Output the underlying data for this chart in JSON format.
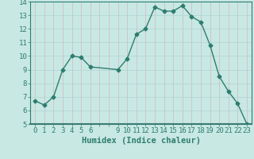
{
  "x": [
    0,
    1,
    2,
    3,
    4,
    5,
    6,
    9,
    10,
    11,
    12,
    13,
    14,
    15,
    16,
    17,
    18,
    19,
    20,
    21,
    22,
    23
  ],
  "y": [
    6.7,
    6.4,
    7.0,
    9.0,
    10.0,
    9.9,
    9.2,
    9.0,
    9.8,
    11.6,
    12.0,
    13.6,
    13.3,
    13.3,
    13.7,
    12.9,
    12.5,
    10.8,
    8.5,
    7.4,
    6.5,
    5.0
  ],
  "line_color": "#2e7d6e",
  "marker": "D",
  "marker_size": 2.5,
  "bg_color": "#c8e8e4",
  "grid_color_h": "#aed4cf",
  "grid_color_v": "#d4b8b8",
  "xlabel": "Humidex (Indice chaleur)",
  "xlim": [
    -0.5,
    23.5
  ],
  "ylim": [
    5,
    14
  ],
  "yticks": [
    5,
    6,
    7,
    8,
    9,
    10,
    11,
    12,
    13,
    14
  ],
  "xticks_all": [
    0,
    1,
    2,
    3,
    4,
    5,
    6,
    7,
    8,
    9,
    10,
    11,
    12,
    13,
    14,
    15,
    16,
    17,
    18,
    19,
    20,
    21,
    22,
    23
  ],
  "xticks_labeled": [
    0,
    1,
    2,
    3,
    4,
    5,
    6,
    9,
    10,
    11,
    12,
    13,
    14,
    15,
    16,
    17,
    18,
    19,
    20,
    21,
    22,
    23
  ],
  "tick_label_fontsize": 6.5,
  "xlabel_fontsize": 7.5,
  "xlabel_fontweight": "bold",
  "axis_color": "#2e7d6e",
  "tick_color": "#2e7d6e",
  "bottom_bar_color": "#3a7a72"
}
